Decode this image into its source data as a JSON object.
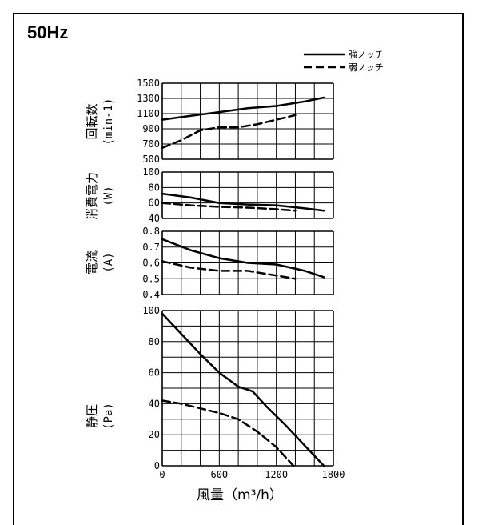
{
  "header": {
    "title": "50Hz"
  },
  "legend": [
    {
      "label": "強ノッチ",
      "style": "solid"
    },
    {
      "label": "弱ノッチ",
      "style": "dashed"
    }
  ],
  "colors": {
    "line": "#000000",
    "grid": "#000000",
    "background": "#ffffff"
  },
  "chart_data": [
    {
      "type": "line",
      "ylabel": "回転数",
      "yunit": "(min-1)",
      "ylim": [
        500,
        1500
      ],
      "yticks": [
        "1500",
        "1300",
        "1100",
        "900",
        "700",
        "500"
      ],
      "xlim": [
        0,
        1800
      ],
      "grid": true,
      "series": [
        {
          "name": "強ノッチ",
          "style": "solid",
          "x": [
            0,
            300,
            600,
            900,
            1200,
            1500,
            1700
          ],
          "y": [
            1020,
            1070,
            1120,
            1170,
            1200,
            1260,
            1310
          ]
        },
        {
          "name": "弱ノッチ",
          "style": "dashed",
          "x": [
            0,
            200,
            400,
            600,
            800,
            1000,
            1200,
            1400
          ],
          "y": [
            650,
            750,
            880,
            920,
            920,
            960,
            1020,
            1080
          ]
        }
      ]
    },
    {
      "type": "line",
      "ylabel": "消費電力",
      "yunit": "(W)",
      "ylim": [
        40,
        100
      ],
      "yticks": [
        "100",
        "80",
        "60",
        "40"
      ],
      "xlim": [
        0,
        1800
      ],
      "grid": true,
      "series": [
        {
          "name": "強ノッチ",
          "style": "solid",
          "x": [
            0,
            300,
            600,
            900,
            1200,
            1500,
            1700
          ],
          "y": [
            72,
            67,
            60,
            58,
            57,
            53,
            50
          ]
        },
        {
          "name": "弱ノッチ",
          "style": "dashed",
          "x": [
            0,
            300,
            600,
            900,
            1200,
            1400
          ],
          "y": [
            60,
            57,
            55,
            54,
            52,
            50
          ]
        }
      ]
    },
    {
      "type": "line",
      "ylabel": "電流",
      "yunit": "(A)",
      "ylim": [
        0.4,
        0.8
      ],
      "yticks": [
        "0.8",
        "0.7",
        "0.6",
        "0.5",
        "0.4"
      ],
      "xlim": [
        0,
        1800
      ],
      "grid": true,
      "series": [
        {
          "name": "強ノッチ",
          "style": "solid",
          "x": [
            0,
            300,
            600,
            900,
            1200,
            1500,
            1700
          ],
          "y": [
            0.75,
            0.68,
            0.63,
            0.6,
            0.59,
            0.55,
            0.51
          ]
        },
        {
          "name": "弱ノッチ",
          "style": "dashed",
          "x": [
            0,
            300,
            600,
            900,
            1200,
            1400
          ],
          "y": [
            0.61,
            0.57,
            0.55,
            0.55,
            0.52,
            0.5
          ]
        }
      ]
    },
    {
      "type": "line",
      "ylabel": "静圧",
      "yunit": "(Pa)",
      "xlabel": "風量（m³/h）",
      "ylim": [
        0,
        100
      ],
      "yticks": [
        "100",
        "80",
        "60",
        "40",
        "20",
        "0"
      ],
      "xlim": [
        0,
        1800
      ],
      "xticks": [
        "0",
        "600",
        "1200",
        "1800"
      ],
      "grid": true,
      "series": [
        {
          "name": "強ノッチ",
          "style": "solid",
          "x": [
            0,
            200,
            400,
            600,
            800,
            950,
            1100,
            1300,
            1500,
            1700
          ],
          "y": [
            98,
            85,
            72,
            60,
            51,
            48,
            38,
            26,
            13,
            0
          ]
        },
        {
          "name": "弱ノッチ",
          "style": "dashed",
          "x": [
            0,
            200,
            400,
            600,
            800,
            1000,
            1200,
            1380
          ],
          "y": [
            42,
            40,
            37,
            34,
            30,
            22,
            12,
            0
          ]
        }
      ]
    }
  ]
}
